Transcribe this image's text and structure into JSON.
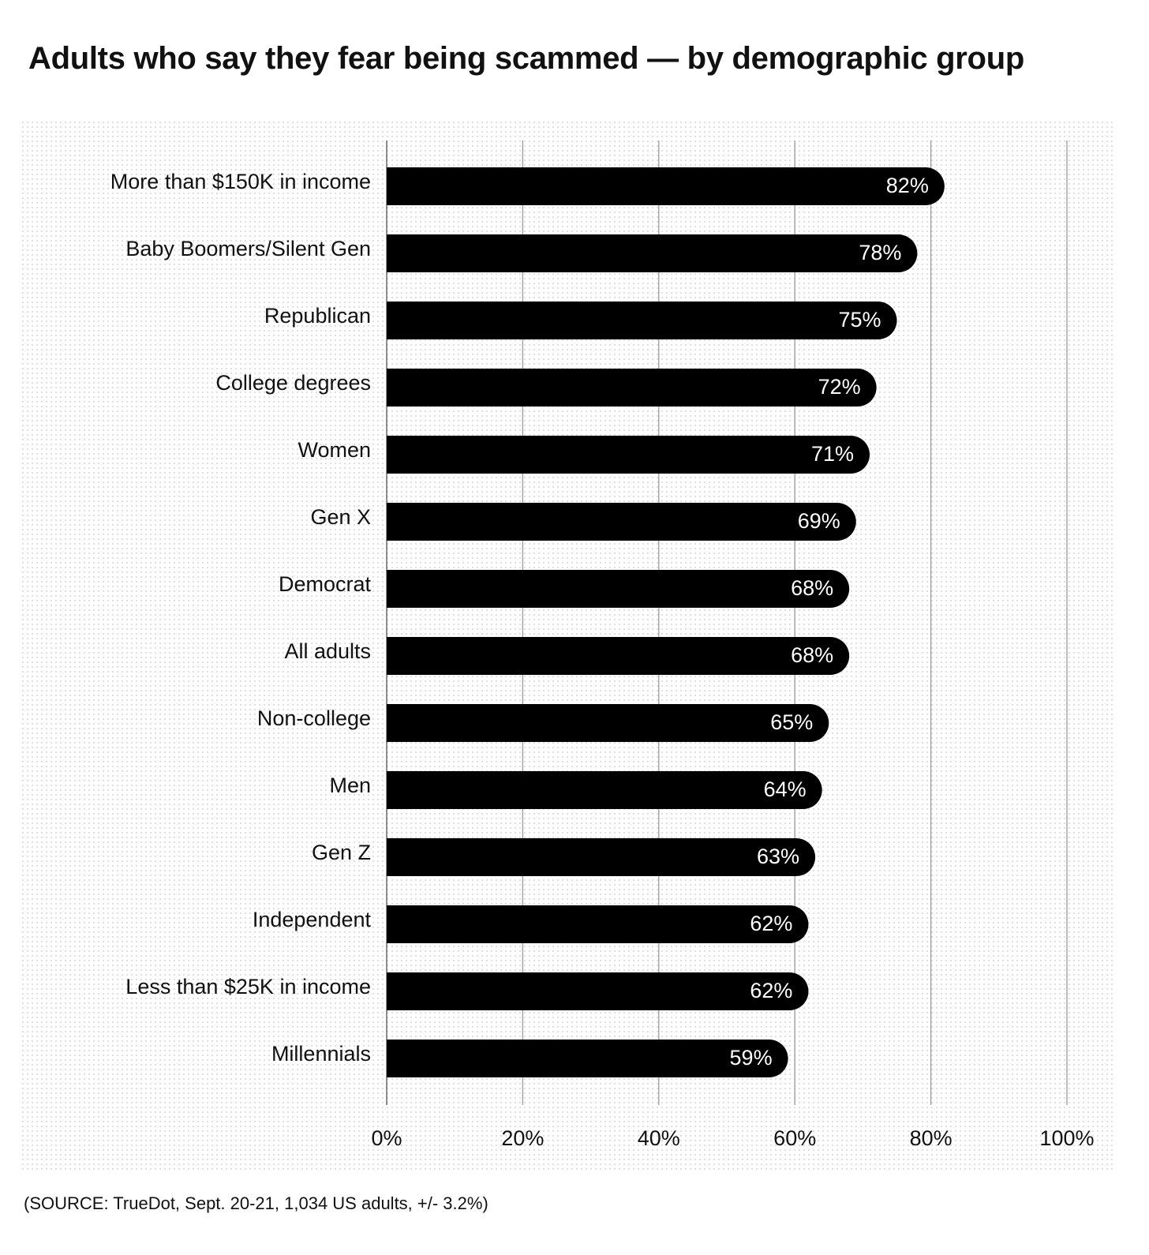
{
  "title": "Adults who say they fear being scammed — by demographic group",
  "source": "(SOURCE: TrueDot, Sept. 20-21, 1,034 US adults, +/- 3.2%)",
  "colors": {
    "bar": "#000000",
    "bar_label": "#ffffff",
    "grid": "#9a9a9a",
    "dot_pattern": "#c8c8c8",
    "text": "#111111"
  },
  "chart_data": {
    "type": "bar",
    "orientation": "horizontal",
    "title": "Adults who say they fear being scammed — by demographic group",
    "xlabel": "",
    "ylabel": "",
    "xlim": [
      0,
      100
    ],
    "grid": true,
    "legend": "none",
    "categories": [
      "More than $150K in income",
      "Baby Boomers/Silent Gen",
      "Republican",
      "College degrees",
      "Women",
      "Gen X",
      "Democrat",
      "All adults",
      "Non-college",
      "Men",
      "Gen Z",
      "Independent",
      "Less than $25K in income",
      "Millennials"
    ],
    "values": [
      82,
      78,
      75,
      72,
      71,
      69,
      68,
      68,
      65,
      64,
      63,
      62,
      62,
      59
    ],
    "value_labels": [
      "82%",
      "78%",
      "75%",
      "72%",
      "71%",
      "69%",
      "68%",
      "68%",
      "65%",
      "64%",
      "63%",
      "62%",
      "62%",
      "59%"
    ],
    "x_ticks": [
      0,
      20,
      40,
      60,
      80,
      100
    ],
    "x_tick_labels": [
      "0%",
      "20%",
      "40%",
      "60%",
      "80%",
      "100%"
    ]
  }
}
